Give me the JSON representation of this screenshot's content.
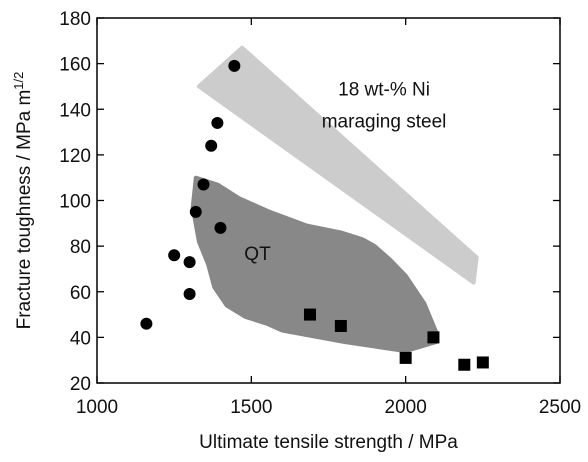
{
  "chart_data": {
    "type": "scatter",
    "xlabel": "Ultimate tensile strength / MPa",
    "ylabel": "Fracture toughness / MPa m",
    "ylabel_sup": "1/2",
    "xlim": [
      1000,
      2500
    ],
    "ylim": [
      20,
      180
    ],
    "x_ticks": [
      1000,
      1500,
      2000,
      2500
    ],
    "y_ticks": [
      20,
      40,
      60,
      80,
      100,
      120,
      140,
      160,
      180
    ],
    "grid": false,
    "annotations": [
      {
        "text": "18 wt-%  Ni",
        "x": 1930,
        "y": 146
      },
      {
        "text": "maraging steel",
        "x": 1930,
        "y": 132
      },
      {
        "text": "QT",
        "x": 1520,
        "y": 74
      }
    ],
    "series": [
      {
        "marker": "circle",
        "color": "#000000",
        "points": [
          [
            1160,
            46
          ],
          [
            1250,
            76
          ],
          [
            1300,
            73
          ],
          [
            1300,
            59
          ],
          [
            1320,
            95
          ],
          [
            1345,
            107
          ],
          [
            1370,
            124
          ],
          [
            1390,
            134
          ],
          [
            1400,
            88
          ],
          [
            1445,
            159
          ]
        ]
      },
      {
        "marker": "square",
        "color": "#000000",
        "points": [
          [
            1690,
            50
          ],
          [
            1790,
            45
          ],
          [
            2000,
            31
          ],
          [
            2090,
            40
          ],
          [
            2190,
            28
          ],
          [
            2250,
            29
          ]
        ]
      }
    ],
    "regions": [
      {
        "color": "#cccccc",
        "points": [
          [
            1330,
            150
          ],
          [
            1470,
            167
          ],
          [
            2230,
            75
          ],
          [
            2220,
            64
          ]
        ]
      },
      {
        "color": "#888888",
        "points": [
          [
            1320,
            110
          ],
          [
            1390,
            107
          ],
          [
            1460,
            101
          ],
          [
            1560,
            95
          ],
          [
            1680,
            89
          ],
          [
            1790,
            86
          ],
          [
            1860,
            83
          ],
          [
            1900,
            80
          ],
          [
            1950,
            74
          ],
          [
            2000,
            67
          ],
          [
            2060,
            55
          ],
          [
            2100,
            42
          ],
          [
            2100,
            38
          ],
          [
            2000,
            34
          ],
          [
            1800,
            38
          ],
          [
            1600,
            43
          ],
          [
            1550,
            46
          ],
          [
            1480,
            49
          ],
          [
            1420,
            54
          ],
          [
            1380,
            62
          ],
          [
            1360,
            72
          ],
          [
            1330,
            82
          ],
          [
            1310,
            97
          ]
        ]
      }
    ]
  }
}
